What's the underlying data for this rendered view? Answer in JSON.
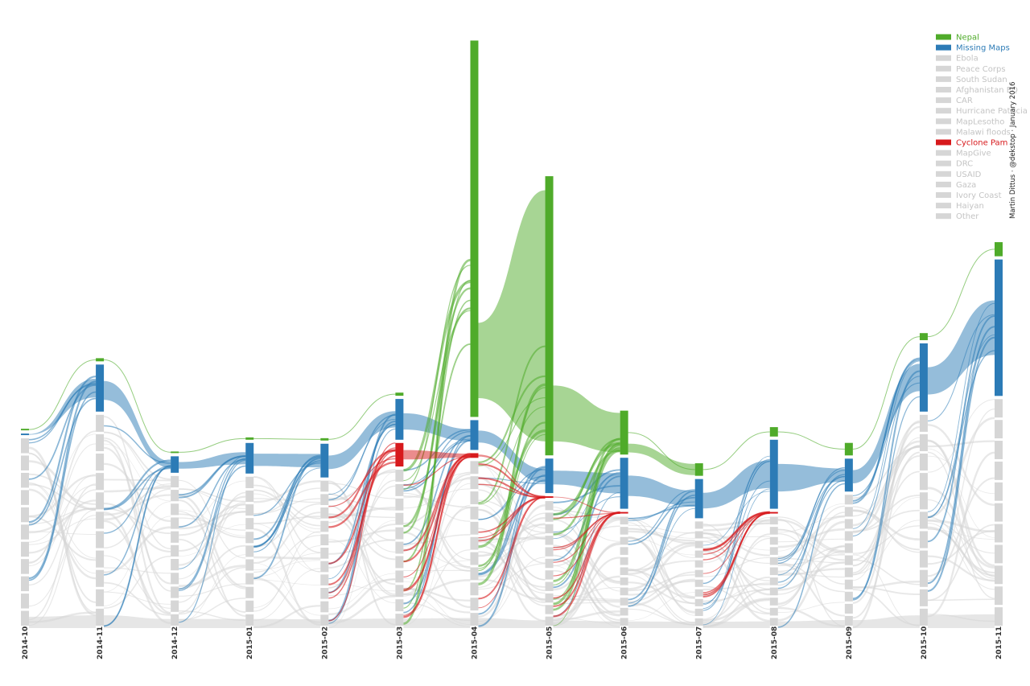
{
  "chart_data": {
    "type": "sankey",
    "title": "",
    "credit": "Martin Dittus · @dekstop · January 2016",
    "columns": [
      "2014-10",
      "2014-11",
      "2014-12",
      "2015-01",
      "2015-02",
      "2015-03",
      "2015-04",
      "2015-05",
      "2015-06",
      "2015-07",
      "2015-08",
      "2015-09",
      "2015-10",
      "2015-11"
    ],
    "legend": [
      {
        "name": "Nepal",
        "color": "#4fab2a",
        "highlight": true
      },
      {
        "name": "Missing Maps",
        "color": "#2c7bb6",
        "highlight": true
      },
      {
        "name": "Ebola",
        "color": "#d6d6d6",
        "highlight": false
      },
      {
        "name": "Peace Corps",
        "color": "#d6d6d6",
        "highlight": false
      },
      {
        "name": "South Sudan",
        "color": "#d6d6d6",
        "highlight": false
      },
      {
        "name": "Afghanistan EQ",
        "color": "#d6d6d6",
        "highlight": false
      },
      {
        "name": "CAR",
        "color": "#d6d6d6",
        "highlight": false
      },
      {
        "name": "Hurricane Patricia",
        "color": "#d6d6d6",
        "highlight": false
      },
      {
        "name": "MapLesotho",
        "color": "#d6d6d6",
        "highlight": false
      },
      {
        "name": "Malawi floods",
        "color": "#d6d6d6",
        "highlight": false
      },
      {
        "name": "Cyclone Pam",
        "color": "#d7191c",
        "highlight": true
      },
      {
        "name": "MapGive",
        "color": "#d6d6d6",
        "highlight": false
      },
      {
        "name": "DRC",
        "color": "#d6d6d6",
        "highlight": false
      },
      {
        "name": "USAID",
        "color": "#d6d6d6",
        "highlight": false
      },
      {
        "name": "Gaza",
        "color": "#d6d6d6",
        "highlight": false
      },
      {
        "name": "Ivory Coast",
        "color": "#d6d6d6",
        "highlight": false
      },
      {
        "name": "Haiyan",
        "color": "#d6d6d6",
        "highlight": false
      },
      {
        "name": "Other",
        "color": "#d6d6d6",
        "highlight": false
      }
    ],
    "series": [
      {
        "name": "Nepal",
        "values": [
          2,
          4,
          2,
          3,
          3,
          4,
          480,
          356,
          56,
          16,
          12,
          16,
          9,
          18
        ]
      },
      {
        "name": "Missing Maps",
        "values": [
          2,
          60,
          21,
          39,
          43,
          52,
          38,
          44,
          65,
          50,
          88,
          42,
          87,
          174
        ]
      },
      {
        "name": "Cyclone Pam",
        "values": [
          0,
          0,
          0,
          0,
          0,
          30,
          6,
          2,
          2,
          0,
          2,
          0,
          0,
          0
        ]
      },
      {
        "name": "Other",
        "values": [
          242,
          272,
          194,
          193,
          188,
          202,
          213,
          162,
          142,
          136,
          142,
          170,
          272,
          292
        ]
      }
    ],
    "ylim": [
      0,
      760
    ],
    "grid": false,
    "legend_position": "top-right",
    "palette": {
      "nepal": "#4fab2a",
      "missing": "#2c7bb6",
      "pam": "#d7191c",
      "other": "#d6d6d6"
    }
  }
}
